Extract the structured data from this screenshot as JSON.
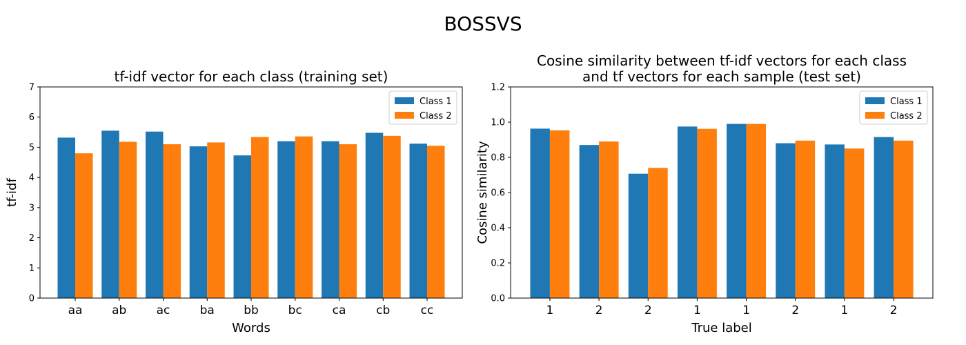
{
  "figure": {
    "suptitle": "BOSSVS"
  },
  "colors": {
    "class_1": "#1f77b4",
    "class_2": "#ff7f0e",
    "axis": "#000000",
    "legend_border": "#cccccc"
  },
  "chart_data": [
    {
      "type": "bar",
      "title": "tf-idf vector for each class (training set)",
      "title_lines": [
        "tf-idf vector for each class (training set)"
      ],
      "xlabel": "Words",
      "ylabel": "tf-idf",
      "categories": [
        "aa",
        "ab",
        "ac",
        "ba",
        "bb",
        "bc",
        "ca",
        "cb",
        "cc"
      ],
      "series": [
        {
          "name": "Class 1",
          "values": [
            5.32,
            5.55,
            5.52,
            5.03,
            4.73,
            5.2,
            5.2,
            5.48,
            5.12
          ]
        },
        {
          "name": "Class 2",
          "values": [
            4.8,
            5.18,
            5.1,
            5.16,
            5.34,
            5.36,
            5.1,
            5.38,
            5.05
          ]
        }
      ],
      "ylim": [
        0,
        7
      ],
      "yticks": [
        0,
        1,
        2,
        3,
        4,
        5,
        6,
        7
      ],
      "ytick_labels": [
        "0",
        "1",
        "2",
        "3",
        "4",
        "5",
        "6",
        "7"
      ],
      "grid": false,
      "legend": "top-right"
    },
    {
      "type": "bar",
      "title": "Cosine similarity between tf-idf vectors for each class and tf vectors for each sample (test set)",
      "title_lines": [
        "Cosine similarity between tf-idf vectors for each class",
        "and tf vectors for each sample (test set)"
      ],
      "xlabel": "True label",
      "ylabel": "Cosine similarity",
      "categories": [
        "1",
        "2",
        "2",
        "1",
        "1",
        "2",
        "1",
        "2"
      ],
      "series": [
        {
          "name": "Class 1",
          "values": [
            0.963,
            0.87,
            0.707,
            0.975,
            0.99,
            0.88,
            0.873,
            0.915
          ]
        },
        {
          "name": "Class 2",
          "values": [
            0.953,
            0.89,
            0.74,
            0.962,
            0.99,
            0.895,
            0.85,
            0.895
          ]
        }
      ],
      "ylim": [
        0,
        1.2
      ],
      "yticks": [
        0,
        0.2,
        0.4,
        0.6,
        0.8,
        1.0,
        1.2
      ],
      "ytick_labels": [
        "0.0",
        "0.2",
        "0.4",
        "0.6",
        "0.8",
        "1.0",
        "1.2"
      ],
      "grid": false,
      "legend": "top-right"
    }
  ]
}
